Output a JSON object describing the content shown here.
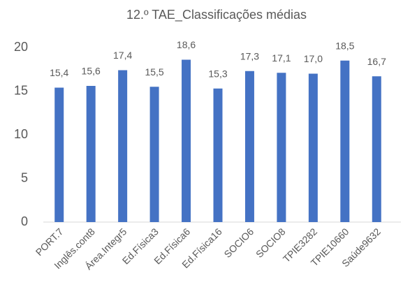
{
  "chart_data": {
    "type": "bar",
    "title": "12.º TAE_Classificações médias",
    "categories": [
      "PORT.7",
      "Inglês.cont8",
      "Área.Integr5",
      "Ed.Física3",
      "Ed.Física6",
      "Ed.Física16",
      "SOCIO6",
      "SOCIO8",
      "TPIE3282",
      "TPIE10660",
      "Saúde9632"
    ],
    "values": [
      15.4,
      15.6,
      17.4,
      15.5,
      18.6,
      15.3,
      17.3,
      17.1,
      17.0,
      18.5,
      16.7
    ],
    "value_labels": [
      "15,4",
      "15,6",
      "17,4",
      "15,5",
      "18,6",
      "15,3",
      "17,3",
      "17,1",
      "17,0",
      "18,5",
      "16,7"
    ],
    "color": "#4472c4",
    "ylim": [
      0,
      20
    ],
    "yticks": [
      0,
      5,
      10,
      15,
      20
    ],
    "grid": false
  }
}
